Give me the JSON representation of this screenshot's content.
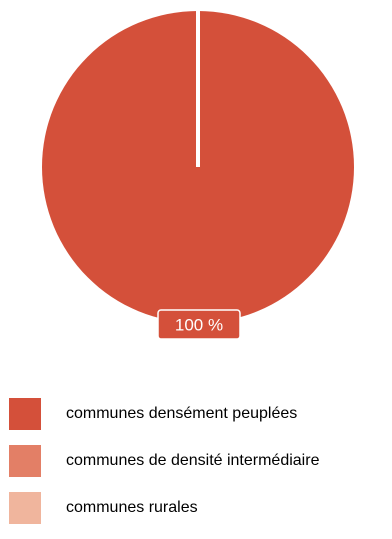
{
  "chart_data": {
    "type": "pie",
    "categories": [
      "communes densément peuplées",
      "communes de densité intermédiaire",
      "communes rurales"
    ],
    "values": [
      100,
      0,
      0
    ],
    "data_labels": [
      "100 %"
    ],
    "colors": [
      "#d4503a",
      "#e37f66",
      "#f0b59d"
    ],
    "legend_position": "bottom-left",
    "title": "",
    "xlabel": "",
    "ylabel": ""
  }
}
